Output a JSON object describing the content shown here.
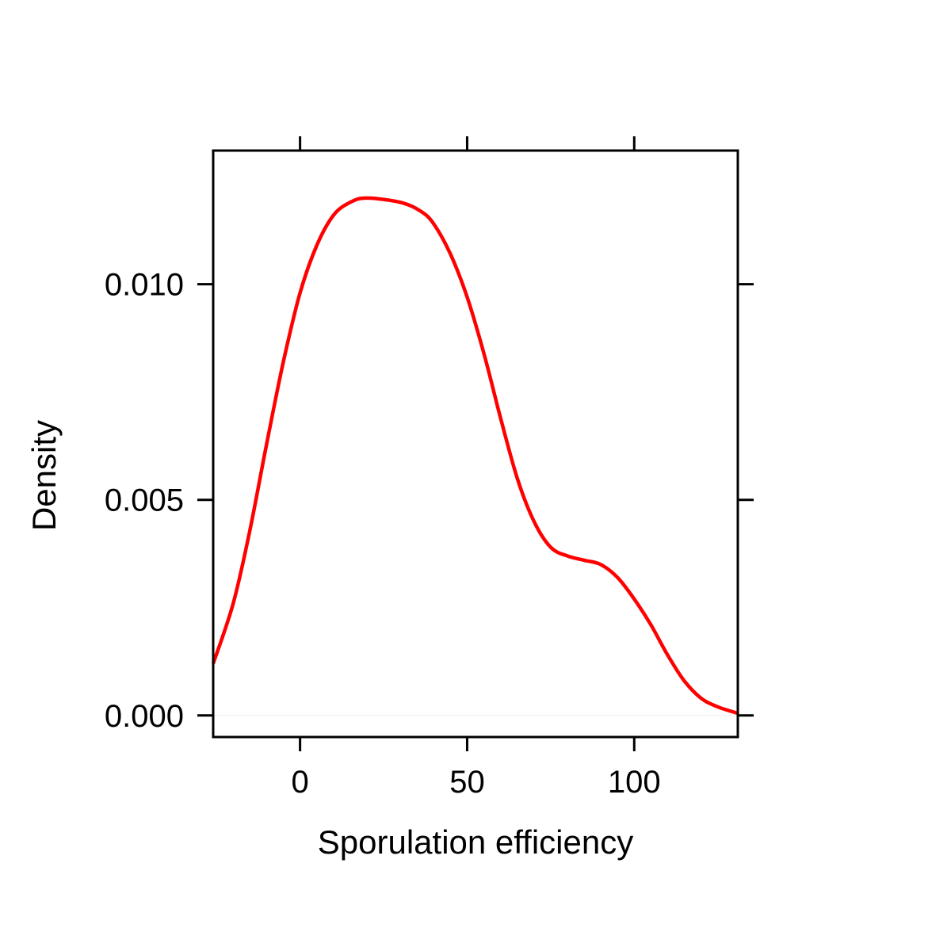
{
  "chart_data": {
    "type": "line",
    "title": "",
    "xlabel": "Sporulation efficiency",
    "ylabel": "Density",
    "xlim": [
      -26,
      131
    ],
    "ylim": [
      -0.0005,
      0.0131
    ],
    "grid": false,
    "x_ticks": [
      {
        "value": 0,
        "label": "0"
      },
      {
        "value": 50,
        "label": "50"
      },
      {
        "value": 100,
        "label": "100"
      }
    ],
    "y_ticks": [
      {
        "value": 0.0,
        "label": "0.000"
      },
      {
        "value": 0.005,
        "label": "0.005"
      },
      {
        "value": 0.01,
        "label": "0.010"
      }
    ],
    "colors": {
      "line": "#ff0000",
      "axis": "#000000",
      "baseline": "#eeeeee"
    },
    "series": [
      {
        "values": [
          [
            -26,
            0.0012
          ],
          [
            -20,
            0.0026
          ],
          [
            -15,
            0.0043
          ],
          [
            -10,
            0.0063
          ],
          [
            -5,
            0.0082
          ],
          [
            0,
            0.0098
          ],
          [
            5,
            0.0109
          ],
          [
            10,
            0.0116
          ],
          [
            15,
            0.0119
          ],
          [
            20,
            0.012
          ],
          [
            30,
            0.0119
          ],
          [
            36,
            0.0117
          ],
          [
            40,
            0.0114
          ],
          [
            45,
            0.0107
          ],
          [
            50,
            0.0097
          ],
          [
            55,
            0.0084
          ],
          [
            60,
            0.0069
          ],
          [
            65,
            0.0055
          ],
          [
            70,
            0.0045
          ],
          [
            75,
            0.0039
          ],
          [
            80,
            0.0037
          ],
          [
            85,
            0.0036
          ],
          [
            90,
            0.0035
          ],
          [
            95,
            0.0032
          ],
          [
            100,
            0.0027
          ],
          [
            105,
            0.0021
          ],
          [
            110,
            0.0014
          ],
          [
            115,
            0.0008
          ],
          [
            120,
            0.0004
          ],
          [
            125,
            0.0002
          ],
          [
            131,
            5e-05
          ]
        ]
      }
    ]
  }
}
